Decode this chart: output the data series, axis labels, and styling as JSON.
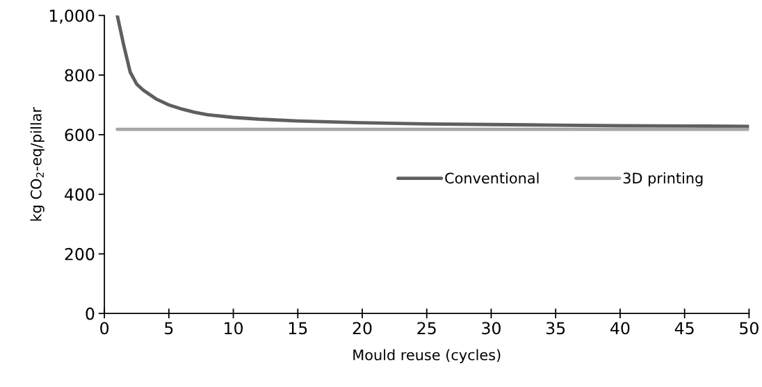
{
  "chart_data": {
    "type": "line",
    "xlabel": "Mould reuse (cycles)",
    "ylabel": "kg CO$_{2}$-eq/pillar",
    "xlim": [
      0,
      50
    ],
    "xticks": [
      0,
      5,
      10,
      15,
      20,
      25,
      30,
      35,
      40,
      45,
      50
    ],
    "ylim": [
      0,
      1000
    ],
    "yticks": [
      0,
      200,
      400,
      600,
      800,
      {
        "value": 1000,
        "label": "1,000"
      }
    ],
    "grid": false,
    "legend": "right",
    "marker": "none",
    "line_style": "solid",
    "series": [
      {
        "name": "Conventional",
        "color": "#5f5f5f",
        "x": [
          1,
          1.5,
          2,
          2.5,
          3,
          4,
          5,
          6,
          7,
          8,
          10,
          12,
          15,
          20,
          25,
          30,
          35,
          40,
          45,
          50
        ],
        "values": [
          1000,
          900,
          810,
          770,
          750,
          720,
          700,
          686,
          675,
          667,
          658,
          652,
          646,
          640,
          636,
          634,
          632,
          630,
          629,
          628
        ]
      },
      {
        "name": "3D printing",
        "color": "#a6a6a6",
        "x": [
          1,
          50
        ],
        "values": [
          618,
          618
        ]
      }
    ]
  }
}
